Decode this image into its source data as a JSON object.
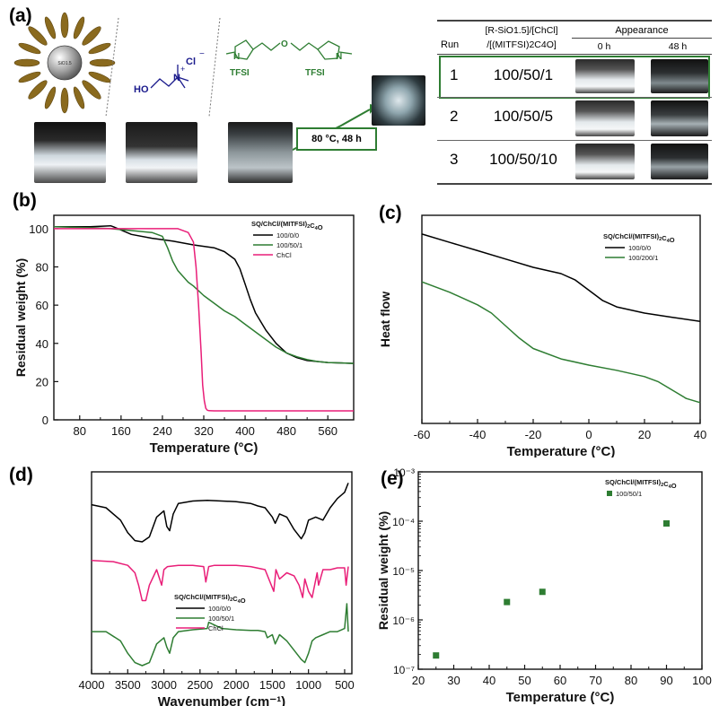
{
  "panels": {
    "a": "(a)",
    "b": "(b)",
    "c": "(c)",
    "d": "(d)",
    "e": "(e)"
  },
  "panel_a": {
    "sq_core": "SiO1.5",
    "chcl_cation_label": "N",
    "chcl_plus": "+",
    "chcl_anion": "Cl",
    "chcl_anion_charge": "−",
    "chcl_ho": "HO",
    "il_n_left": "N",
    "il_n_right": "N",
    "il_o": "O",
    "il_anion_left": "TFSI",
    "il_anion_right": "TFSI",
    "condition": "80 °C, 48 h",
    "table": {
      "headers": {
        "run": "Run",
        "ratio_line1": "[R-SiO1.5]/[ChCl]",
        "ratio_line2": "/[(MITFSI)2C4O]",
        "appearance": "Appearance",
        "t0": "0 h",
        "t48": "48 h"
      },
      "rows": [
        {
          "run": "1",
          "ratio": "100/50/1"
        },
        {
          "run": "2",
          "ratio": "100/50/5"
        },
        {
          "run": "3",
          "ratio": "100/50/10"
        }
      ]
    }
  },
  "chart_data": [
    {
      "id": "b",
      "type": "line",
      "title": "",
      "xlabel": "Temperature (°C)",
      "ylabel": "Residual weight (%)",
      "xlim": [
        30,
        610
      ],
      "ylim": [
        0,
        107
      ],
      "xticks": [
        80,
        160,
        240,
        320,
        400,
        480,
        560
      ],
      "yticks": [
        0,
        20,
        40,
        60,
        80,
        100
      ],
      "legend_title": "SQ/ChCl/(MITFSI)2C4O",
      "legend_position": "top-right",
      "series": [
        {
          "name": "100/0/0",
          "color": "#000000",
          "x": [
            30,
            100,
            140,
            150,
            180,
            220,
            260,
            300,
            340,
            360,
            380,
            390,
            400,
            410,
            420,
            440,
            460,
            480,
            500,
            520,
            540,
            560,
            580,
            610
          ],
          "y": [
            101,
            101,
            101.5,
            100.5,
            97,
            95,
            93.5,
            91.5,
            90,
            88,
            84,
            79,
            71,
            63,
            56,
            47,
            40,
            35,
            32.5,
            31,
            30.5,
            30,
            29.8,
            29.5
          ]
        },
        {
          "name": "100/50/1",
          "color": "#2e7d32",
          "x": [
            30,
            100,
            140,
            180,
            220,
            240,
            250,
            260,
            270,
            280,
            290,
            300,
            320,
            340,
            360,
            380,
            400,
            420,
            440,
            460,
            480,
            500,
            520,
            540,
            560,
            580,
            610
          ],
          "y": [
            101,
            100.5,
            100,
            99,
            98,
            96,
            90,
            83,
            78,
            75,
            72,
            70,
            65,
            61,
            57,
            54,
            50,
            46,
            42,
            38,
            35,
            33,
            31.5,
            30.5,
            30,
            29.8,
            29.5
          ]
        },
        {
          "name": "ChCl",
          "color": "#e91e78",
          "x": [
            30,
            100,
            200,
            270,
            290,
            300,
            305,
            310,
            315,
            318,
            321,
            324,
            327,
            330,
            340,
            400,
            500,
            610
          ],
          "y": [
            100,
            100,
            100,
            100,
            98,
            93,
            80,
            60,
            35,
            18,
            10,
            6,
            5,
            4.8,
            4.7,
            4.7,
            4.7,
            4.7
          ]
        }
      ]
    },
    {
      "id": "c",
      "type": "line",
      "title": "",
      "xlabel": "Temperature (°C)",
      "ylabel": "Heat flow",
      "xlim": [
        -60,
        40
      ],
      "xticks": [
        -60,
        -40,
        -20,
        0,
        20,
        40
      ],
      "legend_title": "SQ/ChCl/(MITFSI)2C4O",
      "legend_position": "top-right",
      "series": [
        {
          "name": "100/0/0",
          "color": "#000000",
          "x": [
            -60,
            -50,
            -40,
            -30,
            -20,
            -10,
            -5,
            0,
            5,
            10,
            20,
            30,
            40
          ],
          "y": [
            0.91,
            0.87,
            0.83,
            0.79,
            0.75,
            0.72,
            0.69,
            0.64,
            0.59,
            0.56,
            0.53,
            0.51,
            0.49
          ]
        },
        {
          "name": "100/200/1",
          "color": "#2e7d32",
          "x": [
            -60,
            -50,
            -40,
            -35,
            -30,
            -25,
            -20,
            -10,
            0,
            10,
            20,
            25,
            30,
            35,
            40
          ],
          "y": [
            0.68,
            0.63,
            0.57,
            0.53,
            0.47,
            0.41,
            0.36,
            0.31,
            0.28,
            0.255,
            0.225,
            0.2,
            0.16,
            0.12,
            0.1
          ]
        }
      ]
    },
    {
      "id": "d",
      "type": "line",
      "title": "",
      "xlabel": "Wavenumber (cm⁻¹)",
      "ylabel": "",
      "xlim": [
        4000,
        400
      ],
      "xticks": [
        4000,
        3500,
        3000,
        2500,
        2000,
        1500,
        1000,
        500
      ],
      "legend_title": "SQ/ChCl/(MITFSI)2C4O",
      "legend_position": "bottom-center",
      "series": [
        {
          "name": "100/0/0",
          "color": "#000000",
          "offset": 2.0,
          "x": [
            4000,
            3800,
            3600,
            3500,
            3400,
            3300,
            3200,
            3100,
            3000,
            2960,
            2920,
            2870,
            2800,
            2600,
            2400,
            2200,
            2000,
            1800,
            1700,
            1600,
            1500,
            1460,
            1400,
            1300,
            1200,
            1100,
            1050,
            1000,
            900,
            800,
            700,
            600,
            500,
            450
          ],
          "y": [
            0.6,
            0.55,
            0.35,
            0.15,
            0.02,
            0.0,
            0.08,
            0.4,
            0.5,
            0.25,
            0.18,
            0.45,
            0.62,
            0.66,
            0.67,
            0.66,
            0.65,
            0.62,
            0.58,
            0.55,
            0.4,
            0.3,
            0.45,
            0.4,
            0.2,
            0.05,
            0.15,
            0.35,
            0.4,
            0.35,
            0.55,
            0.7,
            0.8,
            0.95
          ]
        },
        {
          "name": "100/50/1",
          "color": "#2e7d32",
          "offset": 0.0,
          "x": [
            4000,
            3800,
            3600,
            3500,
            3400,
            3300,
            3200,
            3100,
            3000,
            2960,
            2920,
            2870,
            2800,
            2600,
            2400,
            2380,
            2200,
            2000,
            1800,
            1700,
            1600,
            1570,
            1500,
            1460,
            1400,
            1300,
            1200,
            1100,
            1050,
            1000,
            950,
            900,
            800,
            700,
            600,
            500,
            470,
            450
          ],
          "y": [
            0.55,
            0.55,
            0.4,
            0.2,
            0.05,
            0.0,
            0.05,
            0.35,
            0.45,
            0.3,
            0.2,
            0.45,
            0.55,
            0.58,
            0.6,
            0.7,
            0.6,
            0.58,
            0.57,
            0.57,
            0.55,
            0.45,
            0.5,
            0.35,
            0.5,
            0.4,
            0.25,
            0.1,
            0.05,
            0.2,
            0.4,
            0.45,
            0.5,
            0.55,
            0.55,
            0.6,
            1.0,
            0.55
          ]
        },
        {
          "name": "ChCl",
          "color": "#e91e78",
          "offset": 1.0,
          "x": [
            4000,
            3700,
            3500,
            3400,
            3350,
            3300,
            3250,
            3200,
            3100,
            3030,
            3000,
            2950,
            2800,
            2600,
            2450,
            2420,
            2380,
            2300,
            2000,
            1800,
            1600,
            1480,
            1450,
            1400,
            1300,
            1200,
            1130,
            1080,
            1050,
            1000,
            950,
            880,
            860,
            800,
            700,
            600,
            500,
            480,
            450
          ],
          "y": [
            0.7,
            0.68,
            0.62,
            0.5,
            0.3,
            0.05,
            0.05,
            0.3,
            0.55,
            0.3,
            0.55,
            0.6,
            0.62,
            0.62,
            0.6,
            0.35,
            0.6,
            0.62,
            0.62,
            0.6,
            0.55,
            0.2,
            0.55,
            0.4,
            0.5,
            0.45,
            0.3,
            0.1,
            0.4,
            0.2,
            0.1,
            0.5,
            0.3,
            0.55,
            0.55,
            0.58,
            0.58,
            0.3,
            0.6
          ]
        }
      ]
    },
    {
      "id": "e",
      "type": "scatter",
      "title": "",
      "xlabel": "Temperature (°C)",
      "ylabel": "Residual weight (%)",
      "xlim": [
        20,
        100
      ],
      "ylim_log10": [
        -7,
        -3
      ],
      "log_y": true,
      "xticks": [
        20,
        30,
        40,
        50,
        60,
        70,
        80,
        90,
        100
      ],
      "yticks_labels": [
        "10⁻⁷",
        "10⁻⁶",
        "10⁻⁵",
        "10⁻⁴",
        "10⁻³"
      ],
      "legend_title": "SQ/ChCl/(MITFSI)2C4O",
      "legend_position": "top-right",
      "series": [
        {
          "name": "100/50/1",
          "color": "#2e7d32",
          "x": [
            25,
            45,
            55,
            90
          ],
          "y": [
            1.9e-07,
            2.3e-06,
            3.7e-06,
            9e-05
          ]
        }
      ]
    }
  ]
}
